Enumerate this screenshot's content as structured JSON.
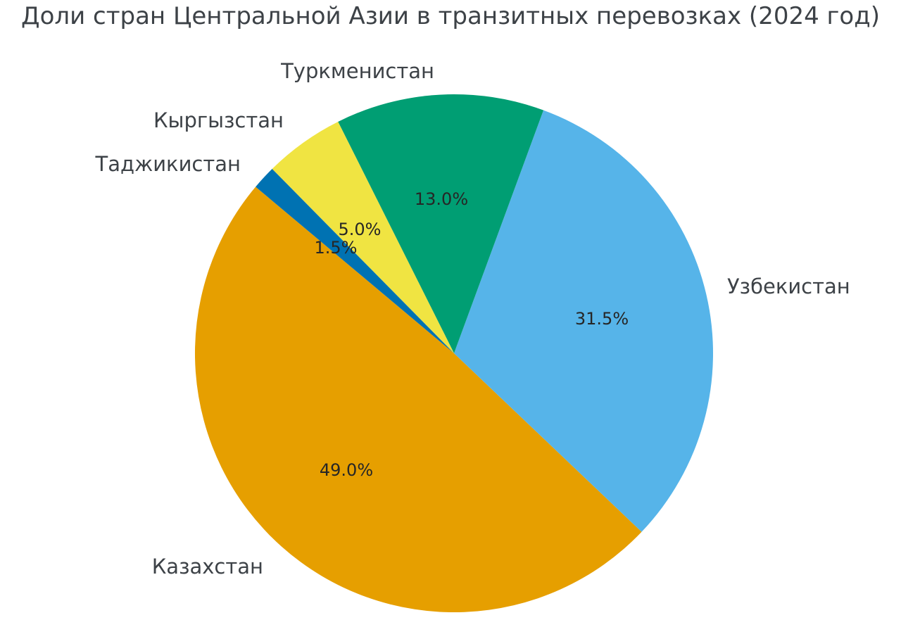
{
  "title": "Доли стран Центральной Азии в транзитных перевозках (2024 год)",
  "chart_data": {
    "type": "pie",
    "title": "Доли стран Центральной Азии в транзитных перевозках (2024 год)",
    "categories": [
      "Казахстан",
      "Узбекистан",
      "Туркменистан",
      "Кыргызстан",
      "Таджикистан"
    ],
    "values": [
      49.0,
      31.5,
      13.0,
      5.0,
      1.5
    ],
    "percent_labels": [
      "49.0%",
      "31.5%",
      "13.0%",
      "5.0%",
      "1.5%"
    ],
    "colors": [
      "#E69F00",
      "#56B4E9",
      "#009E73",
      "#F0E442",
      "#0072B2"
    ],
    "start_angle_deg": 140,
    "direction": "counterclockwise",
    "legend": false,
    "labels_position": "outside",
    "title_color": "#3d4247",
    "label_color": "#3d4247",
    "pct_color": "#262626",
    "background": "#ffffff"
  }
}
